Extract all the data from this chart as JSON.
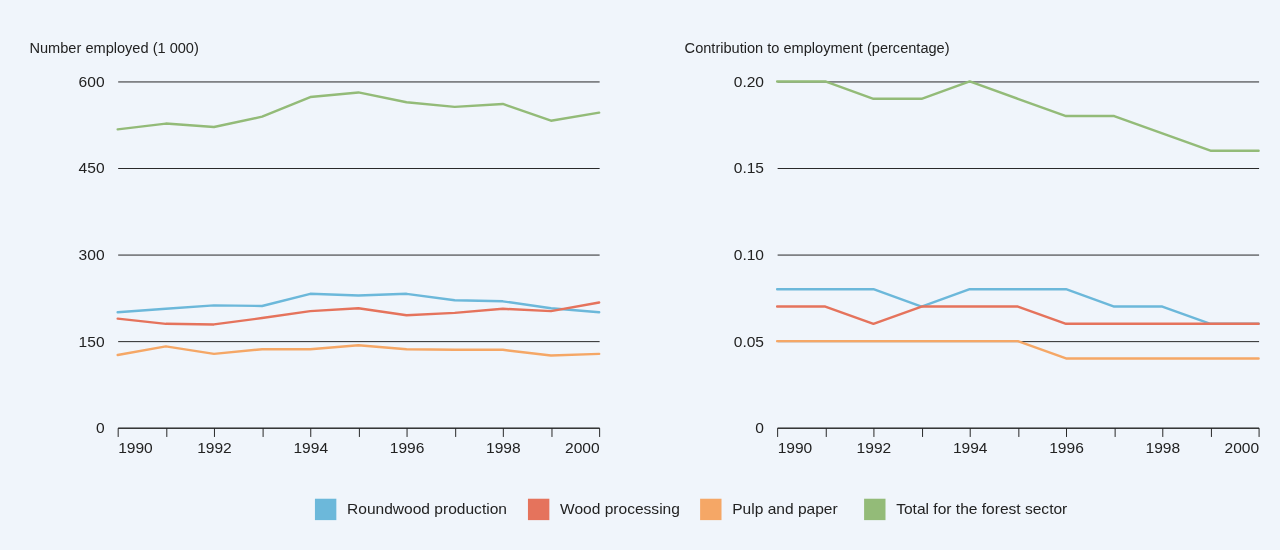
{
  "chart_data": [
    {
      "type": "line",
      "title": "Number employed (1 000)",
      "x": [
        1990,
        1991,
        1992,
        1993,
        1994,
        1995,
        1996,
        1997,
        1998,
        1999,
        2000
      ],
      "series": [
        {
          "name": "Roundwood production",
          "color": "#6cb8da",
          "values": [
            200,
            206,
            212,
            211,
            232,
            229,
            232,
            221,
            219,
            207,
            200
          ]
        },
        {
          "name": "Wood processing",
          "color": "#e5735c",
          "values": [
            189,
            180,
            179,
            190,
            202,
            207,
            195,
            199,
            206,
            202,
            217
          ]
        },
        {
          "name": "Pulp and paper",
          "color": "#f5a766",
          "values": [
            126,
            141,
            128,
            136,
            136,
            143,
            136,
            135,
            135,
            125,
            128
          ]
        },
        {
          "name": "Total for the forest sector",
          "color": "#93bb78",
          "values": [
            517,
            527,
            521,
            539,
            573,
            581,
            564,
            556,
            561,
            532,
            546
          ]
        }
      ],
      "xlim": [
        1990,
        2000
      ],
      "ylim": [
        0,
        600
      ],
      "xticks": [
        1990,
        {
          "value": 1991,
          "label": null
        },
        1992,
        {
          "value": 1993,
          "label": null
        },
        1994,
        {
          "value": 1995,
          "label": null
        },
        1996,
        {
          "value": 1997,
          "label": null
        },
        1998,
        {
          "value": 1999,
          "label": null
        },
        2000
      ],
      "yticks": [
        0,
        150,
        300,
        450,
        600
      ],
      "grid": "y",
      "legend": "bottom",
      "marker": "none",
      "line_style": "solid"
    },
    {
      "type": "line",
      "title": "Contribution to employment (percentage)",
      "x": [
        1990,
        1991,
        1992,
        1993,
        1994,
        1995,
        1996,
        1997,
        1998,
        1999,
        2000
      ],
      "series": [
        {
          "name": "Roundwood production",
          "color": "#6cb8da",
          "values": [
            0.08,
            0.08,
            0.08,
            0.07,
            0.08,
            0.08,
            0.08,
            0.07,
            0.07,
            0.06,
            0.06
          ]
        },
        {
          "name": "Wood processing",
          "color": "#e5735c",
          "values": [
            0.07,
            0.07,
            0.06,
            0.07,
            0.07,
            0.07,
            0.06,
            0.06,
            0.06,
            0.06,
            0.06
          ]
        },
        {
          "name": "Pulp and paper",
          "color": "#f5a766",
          "values": [
            0.05,
            0.05,
            0.05,
            0.05,
            0.05,
            0.05,
            0.04,
            0.04,
            0.04,
            0.04,
            0.04
          ]
        },
        {
          "name": "Total for the forest sector",
          "color": "#93bb78",
          "values": [
            0.2,
            0.2,
            0.19,
            0.19,
            0.2,
            0.19,
            0.18,
            0.18,
            0.17,
            0.16,
            0.16
          ]
        }
      ],
      "xlim": [
        1990,
        2000
      ],
      "ylim": [
        0,
        0.2
      ],
      "xticks": [
        1990,
        {
          "value": 1991,
          "label": null
        },
        1992,
        {
          "value": 1993,
          "label": null
        },
        1994,
        {
          "value": 1995,
          "label": null
        },
        1996,
        {
          "value": 1997,
          "label": null
        },
        1998,
        {
          "value": 1999,
          "label": null
        },
        2000
      ],
      "yticks": [
        0,
        0.05,
        {
          "value": 0.1,
          "label": "0.10"
        },
        0.15,
        {
          "value": 0.2,
          "label": "0.20"
        }
      ],
      "grid": "y",
      "legend": "bottom",
      "marker": "none",
      "line_style": "solid"
    }
  ]
}
